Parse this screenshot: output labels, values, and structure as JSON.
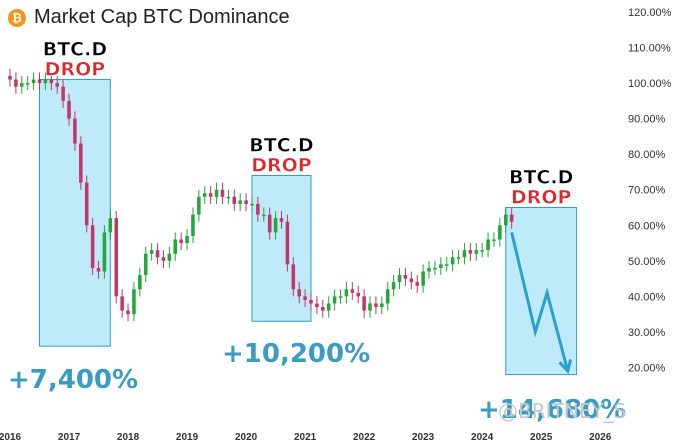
{
  "header": {
    "title": "Market Cap BTC Dominance",
    "logo_icon": "bitcoin-logo-icon",
    "logo_glyph": "₿"
  },
  "watermark": "@BRITNEY_S",
  "chart_data": {
    "type": "candlestick",
    "title": "Market Cap BTC Dominance",
    "y_axis": {
      "min": 0,
      "max": 120,
      "ticks": [
        20,
        30,
        40,
        50,
        60,
        70,
        80,
        90,
        100,
        110,
        120
      ],
      "unit": "%"
    },
    "y_tick_labels": [
      "20.00%",
      "30.00%",
      "40.00%",
      "50.00%",
      "60.00%",
      "70.00%",
      "80.00%",
      "90.00%",
      "100.00%",
      "110.00%",
      "120.00%"
    ],
    "x_axis": {
      "min": 2016,
      "max": 2026.3,
      "ticks": [
        "2016",
        "2017",
        "2018",
        "2019",
        "2020",
        "2021",
        "2022",
        "2023",
        "2024",
        "2025",
        "2026"
      ]
    },
    "colors": {
      "up": "#22a838",
      "down": "#c4356a",
      "box_fill": "#b3e6f8",
      "box_stroke": "#2a9fd0",
      "arrow": "#2a9fd0"
    },
    "series": [
      {
        "t": [
          2016.0,
          2016.1,
          2016.2,
          2016.3,
          2016.4,
          2016.5,
          2016.6,
          2016.7,
          2016.8,
          2016.9,
          2017.0,
          2017.1,
          2017.2,
          2017.3,
          2017.4,
          2017.5,
          2017.6,
          2017.7,
          2017.8,
          2017.9,
          2018.0,
          2018.1,
          2018.2,
          2018.3,
          2018.4,
          2018.5,
          2018.6,
          2018.7,
          2018.8,
          2018.9,
          2019.0,
          2019.1,
          2019.2,
          2019.3,
          2019.4,
          2019.5,
          2019.6,
          2019.7,
          2019.8,
          2019.9,
          2020.0,
          2020.1,
          2020.2,
          2020.3,
          2020.4,
          2020.5,
          2020.6,
          2020.7,
          2020.8,
          2020.9,
          2021.0,
          2021.1,
          2021.2,
          2021.3,
          2021.4,
          2021.5,
          2021.6,
          2021.7,
          2021.8,
          2021.9,
          2022.0,
          2022.1,
          2022.2,
          2022.3,
          2022.4,
          2022.5,
          2022.6,
          2022.7,
          2022.8,
          2022.9,
          2023.0,
          2023.1,
          2023.2,
          2023.3,
          2023.4,
          2023.5,
          2023.6,
          2023.7,
          2023.8,
          2023.9,
          2024.0,
          2024.1,
          2024.2,
          2024.3,
          2024.4,
          2024.5
        ]
      },
      {
        "o": [
          102,
          101,
          99,
          100,
          100,
          101,
          100,
          101,
          100,
          99,
          95,
          90,
          83,
          72,
          60,
          48,
          47,
          58,
          62,
          40,
          36,
          35,
          42,
          46,
          52,
          53,
          51,
          50,
          52,
          56,
          55,
          57,
          63,
          68,
          69,
          68,
          70,
          68,
          68,
          66,
          67,
          66,
          66,
          63,
          63,
          58,
          62,
          61,
          49,
          42,
          40,
          39,
          38,
          37,
          36,
          38,
          40,
          40,
          42,
          41,
          40,
          36,
          38,
          37,
          38,
          42,
          44,
          46,
          45,
          44,
          43,
          47,
          48,
          48,
          49,
          49,
          51,
          51,
          53,
          52,
          53,
          53,
          56,
          56,
          60,
          63
        ]
      },
      {
        "c": [
          101,
          99,
          100,
          100,
          101,
          100,
          101,
          100,
          99,
          95,
          90,
          83,
          72,
          60,
          48,
          47,
          58,
          62,
          40,
          36,
          35,
          42,
          46,
          52,
          53,
          51,
          50,
          52,
          56,
          55,
          57,
          63,
          68,
          69,
          68,
          70,
          68,
          68,
          66,
          67,
          66,
          66,
          63,
          63,
          58,
          62,
          61,
          49,
          42,
          40,
          39,
          38,
          37,
          36,
          38,
          40,
          40,
          42,
          41,
          40,
          36,
          38,
          37,
          38,
          42,
          44,
          46,
          45,
          44,
          43,
          47,
          48,
          48,
          49,
          49,
          51,
          51,
          53,
          52,
          53,
          53,
          56,
          56,
          60,
          63,
          61
        ]
      }
    ],
    "annotations": [
      {
        "label": "BTC.D",
        "sublabel": "DROP",
        "gain": "+7,400%",
        "x_range": [
          2016.5,
          2017.7
        ],
        "y_range": [
          26,
          101
        ]
      },
      {
        "label": "BTC.D",
        "sublabel": "DROP",
        "gain": "+10,200%",
        "x_range": [
          2020.1,
          2021.1
        ],
        "y_range": [
          33,
          74
        ]
      },
      {
        "label": "BTC.D",
        "sublabel": "DROP",
        "gain": "+14,680%",
        "x_range": [
          2024.4,
          2025.6
        ],
        "y_range": [
          18,
          65
        ]
      }
    ],
    "projection_arrow": {
      "points": [
        [
          2024.5,
          58
        ],
        [
          2024.9,
          30
        ],
        [
          2025.1,
          41
        ],
        [
          2025.45,
          19
        ]
      ]
    }
  }
}
